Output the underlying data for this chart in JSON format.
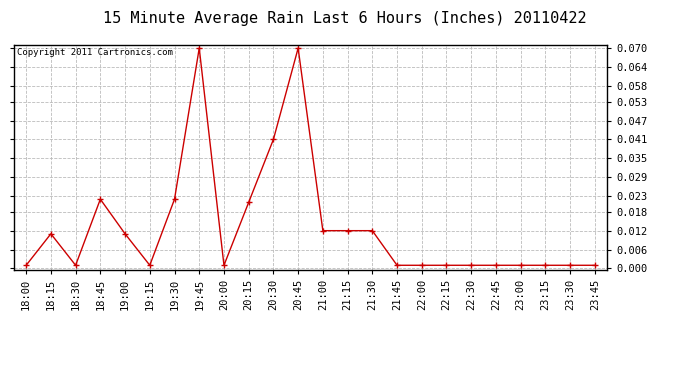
{
  "title": "15 Minute Average Rain Last 6 Hours (Inches) 20110422",
  "copyright": "Copyright 2011 Cartronics.com",
  "x_labels": [
    "18:00",
    "18:15",
    "18:30",
    "18:45",
    "19:00",
    "19:15",
    "19:30",
    "19:45",
    "20:00",
    "20:15",
    "20:30",
    "20:45",
    "21:00",
    "21:15",
    "21:30",
    "21:45",
    "22:00",
    "22:15",
    "22:30",
    "22:45",
    "23:00",
    "23:15",
    "23:30",
    "23:45"
  ],
  "y_values": [
    0.001,
    0.011,
    0.001,
    0.022,
    0.011,
    0.001,
    0.022,
    0.07,
    0.001,
    0.021,
    0.041,
    0.07,
    0.012,
    0.012,
    0.012,
    0.001,
    0.001,
    0.001,
    0.001,
    0.001,
    0.001,
    0.001,
    0.001,
    0.001
  ],
  "y_ticks": [
    0.0,
    0.006,
    0.012,
    0.018,
    0.023,
    0.029,
    0.035,
    0.041,
    0.047,
    0.053,
    0.058,
    0.064,
    0.07
  ],
  "line_color": "#cc0000",
  "marker": "+",
  "marker_size": 5,
  "background_color": "#ffffff",
  "grid_color": "#bbbbbb",
  "title_fontsize": 11,
  "tick_fontsize": 7.5,
  "ylim": [
    0.0,
    0.07
  ]
}
